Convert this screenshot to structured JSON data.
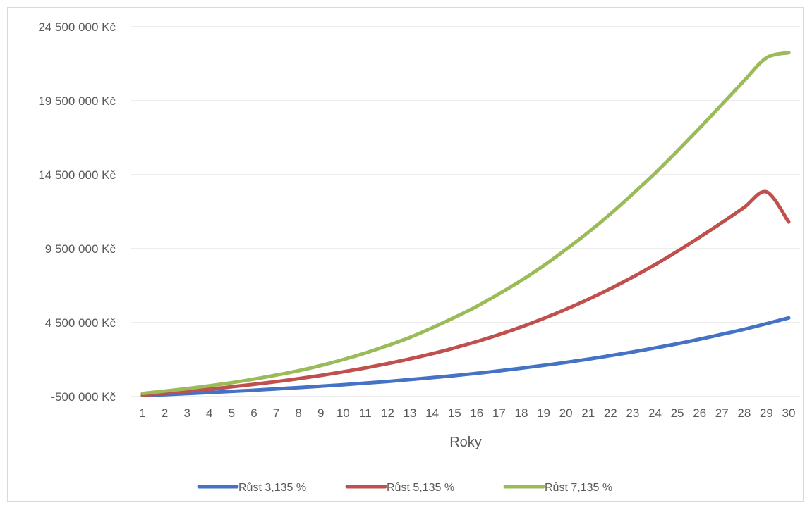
{
  "chart_data": {
    "type": "line",
    "title": "",
    "xlabel": "Roky",
    "ylabel": "",
    "x": [
      1,
      2,
      3,
      4,
      5,
      6,
      7,
      8,
      9,
      10,
      11,
      12,
      13,
      14,
      15,
      16,
      17,
      18,
      19,
      20,
      21,
      22,
      23,
      24,
      25,
      26,
      27,
      28,
      29,
      30
    ],
    "ylim": [
      -500000,
      24500000
    ],
    "yticks": [
      -500000,
      4500000,
      9500000,
      14500000,
      19500000,
      24500000
    ],
    "ytick_labels": [
      "-500 000 Kč",
      "4 500 000 Kč",
      "9 500 000 Kč",
      "14 500 000 Kč",
      "19 500 000 Kč",
      "24 500 000 Kč"
    ],
    "grid": true,
    "legend_position": "bottom",
    "series": [
      {
        "name": "Růst 3,135 %",
        "color": "#4472C4",
        "values": [
          -430000,
          -370000,
          -300000,
          -230000,
          -150000,
          -70000,
          20000,
          110000,
          200000,
          300000,
          410000,
          520000,
          650000,
          780000,
          920000,
          1070000,
          1240000,
          1420000,
          1610000,
          1810000,
          2030000,
          2270000,
          2520000,
          2790000,
          3070000,
          3380000,
          3710000,
          4050000,
          4430000,
          4820000
        ]
      },
      {
        "name": "Růst 5,135 %",
        "color": "#C0504D",
        "values": [
          -410000,
          -280000,
          -140000,
          0,
          160000,
          330000,
          510000,
          710000,
          930000,
          1170000,
          1440000,
          1730000,
          2050000,
          2400000,
          2790000,
          3220000,
          3690000,
          4210000,
          4780000,
          5400000,
          6070000,
          6800000,
          7580000,
          8420000,
          9320000,
          10270000,
          11260000,
          12290000,
          13340000,
          11300000
        ]
      },
      {
        "name": "Růst 7,135 %",
        "color": "#9BBB59",
        "values": [
          -290000,
          -130000,
          40000,
          230000,
          440000,
          680000,
          950000,
          1250000,
          1600000,
          2000000,
          2450000,
          2950000,
          3500000,
          4150000,
          4850000,
          5600000,
          6450000,
          7350000,
          8350000,
          9450000,
          10600000,
          11850000,
          13200000,
          14600000,
          16100000,
          17650000,
          19250000,
          20850000,
          22400000,
          22750000
        ]
      }
    ]
  }
}
